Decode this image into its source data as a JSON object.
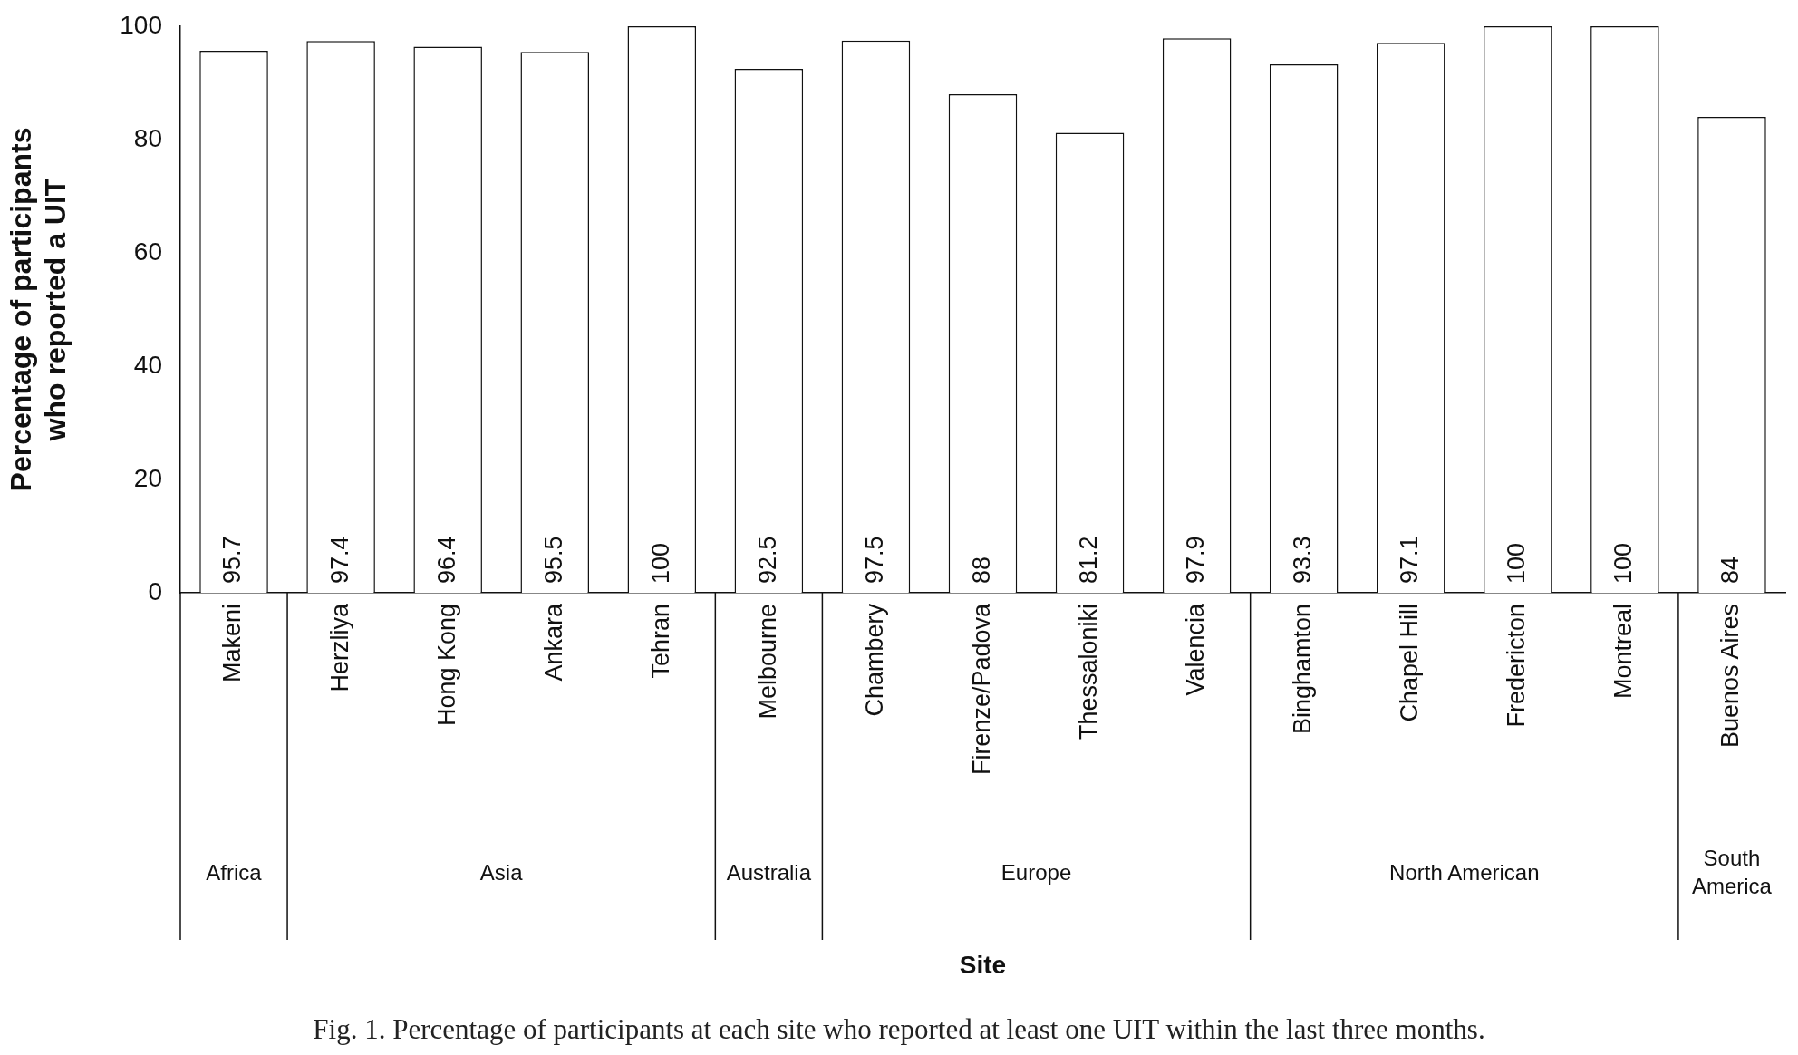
{
  "chart_data": {
    "type": "bar",
    "categories": [
      "Makeni",
      "Herzliya",
      "Hong Kong",
      "Ankara",
      "Tehran",
      "Melbourne",
      "Chambery",
      "Firenze/Padova",
      "Thessaloniki",
      "Valencia",
      "Binghamton",
      "Chapel Hill",
      "Fredericton",
      "Montreal",
      "Buenos Aires"
    ],
    "values": [
      95.7,
      97.4,
      96.4,
      95.5,
      100,
      92.5,
      97.5,
      88,
      81.2,
      97.9,
      93.3,
      97.1,
      100,
      100,
      84
    ],
    "color": "#ffffff",
    "data_labels": true,
    "ylabel": "Percentage of participants\nwho reported a UIT",
    "ylim": [
      0,
      100
    ],
    "yticks": [
      0,
      20,
      40,
      60,
      80,
      100
    ],
    "grid": false,
    "legend": false,
    "annotations": [
      "Africa",
      "Asia",
      "Australia",
      "Europe",
      "North American",
      "South America",
      "Site",
      "Fig. 1. Percentage of participants at each site who reported at least one UIT within the last three months."
    ]
  }
}
